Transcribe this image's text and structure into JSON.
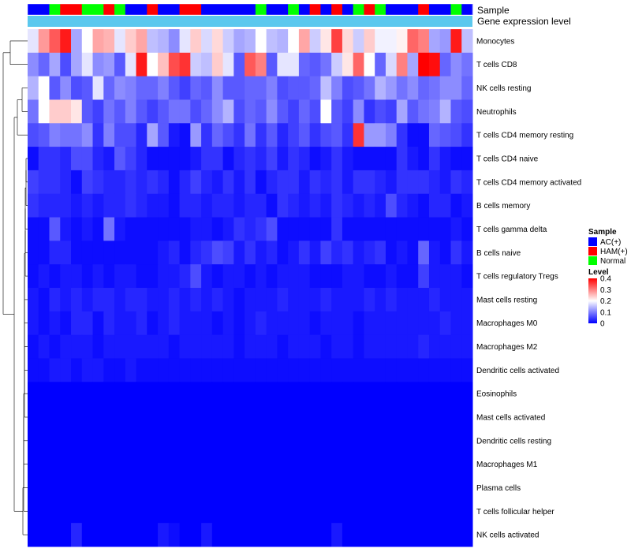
{
  "chart_data": {
    "type": "heatmap",
    "annotation_labels": [
      "Sample",
      "Gene expression level"
    ],
    "rows": [
      "Monocytes",
      "T cells CD8",
      "NK cells resting",
      "Neutrophils",
      "T cells CD4 memory resting",
      "T cells CD4 naive",
      "T cells CD4 memory activated",
      "B cells memory",
      "T cells gamma delta",
      "B cells naive",
      "T cells regulatory  Tregs",
      "Mast cells resting",
      "Macrophages M0",
      "Macrophages M2",
      "Dendritic cells activated",
      "Eosinophils",
      "Mast cells activated",
      "Dendritic cells resting",
      "Macrophages M1",
      "Plasma cells",
      "T cells follicular helper",
      "NK cells activated"
    ],
    "sample_groups": [
      "AC(+)",
      "AC(+)",
      "Normal",
      "HAM(+)",
      "HAM(+)",
      "Normal",
      "Normal",
      "HAM(+)",
      "Normal",
      "AC(+)",
      "AC(+)",
      "HAM(+)",
      "AC(+)",
      "AC(+)",
      "HAM(+)",
      "HAM(+)",
      "AC(+)",
      "AC(+)",
      "AC(+)",
      "AC(+)",
      "AC(+)",
      "Normal",
      "AC(+)",
      "AC(+)",
      "Normal",
      "AC(+)",
      "HAM(+)",
      "AC(+)",
      "HAM(+)",
      "AC(+)",
      "Normal",
      "HAM(+)",
      "Normal",
      "AC(+)",
      "AC(+)",
      "AC(+)",
      "HAM(+)",
      "AC(+)",
      "AC(+)",
      "Normal",
      "AC(+)"
    ],
    "values": [
      [
        0.18,
        0.28,
        0.33,
        0.38,
        0.13,
        0.2,
        0.27,
        0.26,
        0.18,
        0.24,
        0.27,
        0.15,
        0.14,
        0.11,
        0.18,
        0.24,
        0.17,
        0.23,
        0.16,
        0.13,
        0.14,
        0.2,
        0.15,
        0.14,
        0.2,
        0.27,
        0.16,
        0.22,
        0.35,
        0.23,
        0.16,
        0.24,
        0.19,
        0.19,
        0.21,
        0.32,
        0.3,
        0.13,
        0.12,
        0.38,
        0.15
      ],
      [
        0.11,
        0.08,
        0.13,
        0.06,
        0.13,
        0.18,
        0.11,
        0.12,
        0.07,
        0.18,
        0.38,
        0.2,
        0.25,
        0.34,
        0.36,
        0.16,
        0.15,
        0.24,
        0.18,
        0.07,
        0.33,
        0.3,
        0.07,
        0.18,
        0.18,
        0.08,
        0.07,
        0.09,
        0.16,
        0.22,
        0.32,
        0.2,
        0.08,
        0.17,
        0.3,
        0.13,
        0.4,
        0.39,
        0.08,
        0.11,
        0.09
      ],
      [
        0.14,
        0.2,
        0.07,
        0.11,
        0.06,
        0.07,
        0.18,
        0.08,
        0.11,
        0.1,
        0.08,
        0.08,
        0.1,
        0.07,
        0.05,
        0.08,
        0.07,
        0.11,
        0.07,
        0.07,
        0.08,
        0.08,
        0.1,
        0.06,
        0.07,
        0.07,
        0.08,
        0.15,
        0.1,
        0.06,
        0.07,
        0.09,
        0.14,
        0.12,
        0.09,
        0.11,
        0.08,
        0.09,
        0.11,
        0.11,
        0.08
      ],
      [
        0.09,
        0.2,
        0.24,
        0.24,
        0.22,
        0.07,
        0.05,
        0.09,
        0.07,
        0.1,
        0.07,
        0.05,
        0.07,
        0.09,
        0.09,
        0.06,
        0.08,
        0.11,
        0.14,
        0.06,
        0.08,
        0.07,
        0.11,
        0.07,
        0.05,
        0.08,
        0.06,
        0.2,
        0.07,
        0.05,
        0.11,
        0.04,
        0.06,
        0.05,
        0.13,
        0.07,
        0.09,
        0.1,
        0.14,
        0.07,
        0.06
      ],
      [
        0.06,
        0.07,
        0.1,
        0.09,
        0.09,
        0.11,
        0.04,
        0.1,
        0.06,
        0.06,
        0.03,
        0.13,
        0.07,
        0.02,
        0.01,
        0.12,
        0.04,
        0.08,
        0.06,
        0.04,
        0.09,
        0.04,
        0.07,
        0.03,
        0.05,
        0.07,
        0.04,
        0.06,
        0.07,
        0.04,
        0.36,
        0.12,
        0.12,
        0.1,
        0.04,
        0.01,
        0.01,
        0.08,
        0.07,
        0.06,
        0.04
      ],
      [
        0.01,
        0.04,
        0.04,
        0.03,
        0.06,
        0.06,
        0.03,
        0.02,
        0.07,
        0.05,
        0.03,
        0.01,
        0.01,
        0.01,
        0.01,
        0.02,
        0.04,
        0.04,
        0.01,
        0.03,
        0.04,
        0.03,
        0.05,
        0.02,
        0.04,
        0.03,
        0.01,
        0.02,
        0.04,
        0.02,
        0.01,
        0.01,
        0.01,
        0.01,
        0.04,
        0.02,
        0.01,
        0.04,
        0.02,
        0.01,
        0.01
      ],
      [
        0.05,
        0.04,
        0.04,
        0.03,
        0.01,
        0.05,
        0.04,
        0.03,
        0.03,
        0.04,
        0.03,
        0.04,
        0.03,
        0.01,
        0.03,
        0.05,
        0.03,
        0.02,
        0.04,
        0.02,
        0.04,
        0.01,
        0.03,
        0.04,
        0.04,
        0.02,
        0.04,
        0.03,
        0.04,
        0.02,
        0.04,
        0.04,
        0.03,
        0.02,
        0.04,
        0.04,
        0.04,
        0.03,
        0.02,
        0.04,
        0.03
      ],
      [
        0.04,
        0.03,
        0.03,
        0.03,
        0.02,
        0.03,
        0.02,
        0.03,
        0.03,
        0.04,
        0.03,
        0.02,
        0.02,
        0.01,
        0.03,
        0.03,
        0.02,
        0.03,
        0.03,
        0.02,
        0.03,
        0.03,
        0.01,
        0.04,
        0.03,
        0.02,
        0.03,
        0.02,
        0.04,
        0.03,
        0.02,
        0.03,
        0.02,
        0.06,
        0.03,
        0.02,
        0.01,
        0.03,
        0.03,
        0.01,
        0.02
      ],
      [
        0.01,
        0.01,
        0.07,
        0.02,
        0.01,
        0.02,
        0.01,
        0.09,
        0.02,
        0.01,
        0.01,
        0.01,
        0.01,
        0.01,
        0.01,
        0.02,
        0.02,
        0.01,
        0.02,
        0.04,
        0.03,
        0.04,
        0.06,
        0.01,
        0.01,
        0.01,
        0.01,
        0.01,
        0.04,
        0.01,
        0.01,
        0.01,
        0.01,
        0.01,
        0.01,
        0.01,
        0.01,
        0.01,
        0.01,
        0.02,
        0.01
      ],
      [
        0.01,
        0.01,
        0.03,
        0.03,
        0.01,
        0.01,
        0.01,
        0.01,
        0.01,
        0.01,
        0.01,
        0.01,
        0.02,
        0.03,
        0.01,
        0.03,
        0.04,
        0.06,
        0.05,
        0.02,
        0.04,
        0.02,
        0.03,
        0.01,
        0.02,
        0.04,
        0.02,
        0.05,
        0.03,
        0.04,
        0.02,
        0.03,
        0.04,
        0.01,
        0.02,
        0.01,
        0.08,
        0.02,
        0.01,
        0.04,
        0.02
      ],
      [
        0.01,
        0.02,
        0.01,
        0.02,
        0.02,
        0.01,
        0.02,
        0.01,
        0.02,
        0.02,
        0.01,
        0.01,
        0.02,
        0.02,
        0.03,
        0.06,
        0.02,
        0.01,
        0.02,
        0.02,
        0.01,
        0.02,
        0.01,
        0.02,
        0.02,
        0.02,
        0.01,
        0.01,
        0.01,
        0.02,
        0.02,
        0.01,
        0.01,
        0.02,
        0.01,
        0.01,
        0.05,
        0.02,
        0.02,
        0.02,
        0.01
      ],
      [
        0.02,
        0.01,
        0.03,
        0.02,
        0.03,
        0.02,
        0.03,
        0.03,
        0.02,
        0.03,
        0.03,
        0.02,
        0.02,
        0.03,
        0.02,
        0.03,
        0.02,
        0.03,
        0.02,
        0.01,
        0.02,
        0.02,
        0.02,
        0.03,
        0.02,
        0.02,
        0.02,
        0.03,
        0.02,
        0.02,
        0.02,
        0.03,
        0.02,
        0.03,
        0.02,
        0.02,
        0.02,
        0.03,
        0.02,
        0.02,
        0.02
      ],
      [
        0.02,
        0.01,
        0.02,
        0.01,
        0.03,
        0.03,
        0.01,
        0.03,
        0.02,
        0.02,
        0.03,
        0.01,
        0.02,
        0.03,
        0.02,
        0.02,
        0.02,
        0.01,
        0.02,
        0.01,
        0.02,
        0.03,
        0.02,
        0.02,
        0.02,
        0.02,
        0.01,
        0.02,
        0.02,
        0.02,
        0.01,
        0.02,
        0.02,
        0.02,
        0.02,
        0.02,
        0.02,
        0.02,
        0.03,
        0.02,
        0.02
      ],
      [
        0.01,
        0.02,
        0.01,
        0.02,
        0.02,
        0.02,
        0.01,
        0.02,
        0.02,
        0.02,
        0.02,
        0.02,
        0.02,
        0.01,
        0.02,
        0.02,
        0.02,
        0.02,
        0.02,
        0.01,
        0.02,
        0.02,
        0.02,
        0.01,
        0.02,
        0.02,
        0.02,
        0.01,
        0.02,
        0.02,
        0.01,
        0.02,
        0.02,
        0.02,
        0.02,
        0.02,
        0.03,
        0.02,
        0.02,
        0.02,
        0.02
      ],
      [
        0.01,
        0.01,
        0.02,
        0.02,
        0.01,
        0.02,
        0.02,
        0.01,
        0.01,
        0.02,
        0.01,
        0.01,
        0.01,
        0.01,
        0.01,
        0.01,
        0.01,
        0.01,
        0.01,
        0.01,
        0.01,
        0.01,
        0.01,
        0.01,
        0.01,
        0.01,
        0.01,
        0.01,
        0.01,
        0.01,
        0.01,
        0.01,
        0.01,
        0.01,
        0.01,
        0.01,
        0.01,
        0.01,
        0.01,
        0.01,
        0.01
      ],
      [
        0,
        0,
        0,
        0,
        0,
        0,
        0,
        0,
        0,
        0,
        0,
        0,
        0,
        0,
        0,
        0,
        0,
        0,
        0,
        0,
        0,
        0,
        0,
        0,
        0,
        0,
        0,
        0,
        0,
        0,
        0,
        0,
        0,
        0,
        0,
        0,
        0,
        0,
        0,
        0,
        0
      ],
      [
        0,
        0,
        0,
        0,
        0,
        0,
        0,
        0,
        0,
        0,
        0,
        0,
        0,
        0,
        0,
        0,
        0,
        0,
        0,
        0,
        0,
        0,
        0,
        0,
        0,
        0,
        0,
        0,
        0,
        0,
        0,
        0,
        0,
        0,
        0,
        0,
        0,
        0,
        0,
        0,
        0
      ],
      [
        0,
        0,
        0,
        0,
        0,
        0,
        0,
        0,
        0,
        0,
        0,
        0,
        0,
        0,
        0,
        0,
        0,
        0,
        0,
        0,
        0,
        0,
        0,
        0,
        0,
        0,
        0,
        0,
        0,
        0,
        0,
        0,
        0,
        0,
        0,
        0,
        0,
        0,
        0,
        0,
        0
      ],
      [
        0,
        0,
        0,
        0,
        0,
        0,
        0,
        0,
        0,
        0,
        0,
        0,
        0,
        0,
        0,
        0,
        0,
        0,
        0,
        0,
        0,
        0,
        0,
        0,
        0,
        0,
        0,
        0,
        0,
        0,
        0,
        0,
        0,
        0,
        0,
        0,
        0,
        0,
        0,
        0,
        0
      ],
      [
        0,
        0,
        0,
        0,
        0,
        0,
        0,
        0,
        0,
        0,
        0,
        0,
        0,
        0,
        0,
        0,
        0,
        0,
        0,
        0,
        0,
        0,
        0,
        0,
        0,
        0,
        0,
        0,
        0,
        0,
        0,
        0,
        0,
        0,
        0,
        0,
        0,
        0,
        0,
        0,
        0
      ],
      [
        0,
        0,
        0,
        0,
        0,
        0,
        0,
        0,
        0,
        0,
        0,
        0,
        0,
        0,
        0,
        0,
        0,
        0,
        0,
        0,
        0,
        0,
        0,
        0,
        0,
        0,
        0,
        0,
        0,
        0,
        0,
        0,
        0,
        0,
        0,
        0,
        0,
        0,
        0,
        0,
        0
      ],
      [
        0,
        0,
        0,
        0,
        0.03,
        0,
        0,
        0,
        0,
        0,
        0,
        0,
        0.02,
        0.01,
        0,
        0,
        0.02,
        0,
        0,
        0,
        0,
        0,
        0,
        0,
        0,
        0,
        0,
        0,
        0.02,
        0,
        0,
        0,
        0,
        0,
        0,
        0,
        0,
        0,
        0,
        0,
        0
      ]
    ],
    "legend_sample": {
      "title": "Sample",
      "entries": [
        "AC(+)",
        "HAM(+)",
        "Normal"
      ],
      "colors": [
        "#0000ff",
        "#ff0000",
        "#00ff00"
      ]
    },
    "legend_level": {
      "title": "Level",
      "ticks": [
        "0.4",
        "0.3",
        "0.2",
        "0.1",
        "0"
      ],
      "range": [
        0,
        0.4
      ]
    },
    "colors": {
      "low": "#0000ff",
      "mid": "#ffffff",
      "high": "#ff0000",
      "annotation_bar": "#5bc8ee"
    }
  }
}
